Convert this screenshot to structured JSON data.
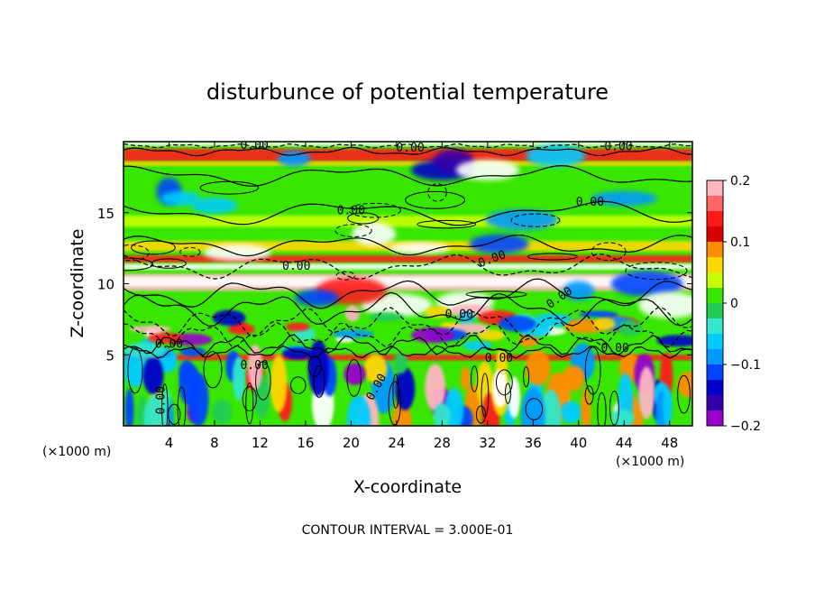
{
  "chart_data": {
    "type": "heatmap",
    "title": "disturbunce of potential temperature",
    "xlabel": "X-coordinate",
    "ylabel": "Z-coordinate",
    "x_unit_left": "(×1000 m)",
    "x_unit_right": "(×1000 m)",
    "xlim": [
      0,
      50
    ],
    "ylim": [
      0,
      20
    ],
    "x_ticks": [
      4,
      8,
      12,
      16,
      20,
      24,
      28,
      32,
      36,
      40,
      44,
      48
    ],
    "x_tick_labels": [
      "4",
      "8",
      "12",
      "16",
      "20",
      "24",
      "28",
      "32",
      "36",
      "40",
      "44",
      "48"
    ],
    "y_ticks": [
      5,
      10,
      15
    ],
    "y_tick_labels": [
      "5",
      "10",
      "15"
    ],
    "colorbar": {
      "range": [
        -0.2,
        0.2
      ],
      "tick_values": [
        0.2,
        0.1,
        0,
        -0.1,
        -0.2
      ],
      "tick_labels": [
        "0.2",
        "0.1",
        "0",
        "−0.1",
        "−0.2"
      ],
      "colors": [
        "#ffb6c1",
        "#ff6666",
        "#ff1a1a",
        "#d90000",
        "#ff8c00",
        "#ffd700",
        "#c8ff00",
        "#39e600",
        "#22cc55",
        "#33e6cc",
        "#00ccff",
        "#0099ff",
        "#0044ff",
        "#0000cc",
        "#3300aa",
        "#9900cc"
      ]
    },
    "contour_labels": [
      {
        "text": "0.00",
        "x": 11.5,
        "z": 19.5,
        "angle": 0
      },
      {
        "text": "0.00",
        "x": 25.2,
        "z": 19.3,
        "angle": 0
      },
      {
        "text": "0.00",
        "x": 43.5,
        "z": 19.4,
        "angle": 0
      },
      {
        "text": "0.00",
        "x": 20.0,
        "z": 14.9,
        "angle": 0
      },
      {
        "text": "0.00",
        "x": 41.0,
        "z": 15.5,
        "angle": 0
      },
      {
        "text": "0.00",
        "x": 15.2,
        "z": 11.0,
        "angle": 0
      },
      {
        "text": "0.00",
        "x": 32.5,
        "z": 11.5,
        "angle": -20
      },
      {
        "text": "0.00",
        "x": 29.5,
        "z": 7.6,
        "angle": 0
      },
      {
        "text": "0.00",
        "x": 38.5,
        "z": 8.8,
        "angle": -35
      },
      {
        "text": "0.00",
        "x": 33.0,
        "z": 4.5,
        "angle": 0
      },
      {
        "text": "0.00",
        "x": 11.5,
        "z": 4.0,
        "angle": 0
      },
      {
        "text": "0.00",
        "x": 4.0,
        "z": 5.5,
        "angle": 0
      },
      {
        "text": "0.00",
        "x": 43.2,
        "z": 5.2,
        "angle": 0
      },
      {
        "text": "0.00",
        "x": 22.5,
        "z": 2.6,
        "angle": -60
      },
      {
        "text": "0.00",
        "x": 3.6,
        "z": 1.8,
        "angle": -90
      }
    ],
    "footer": "CONTOUR INTERVAL = 3.000E-01"
  }
}
